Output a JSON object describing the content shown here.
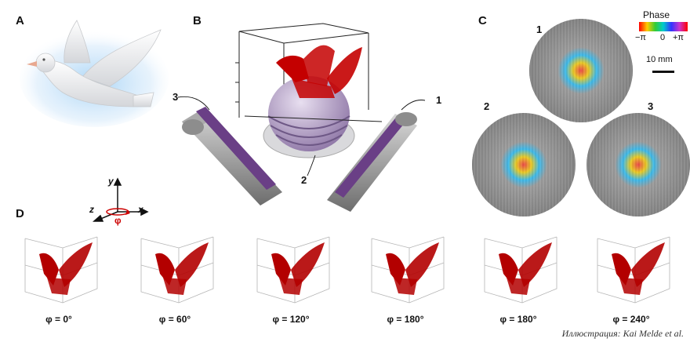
{
  "panels": {
    "a": {
      "letter": "A",
      "icon": "dove-model-icon"
    },
    "b": {
      "letter": "B",
      "callouts": [
        "3",
        "2",
        "1"
      ]
    },
    "c": {
      "letter": "C",
      "holograms": [
        "1",
        "2",
        "3"
      ],
      "colorbar": {
        "title": "Phase",
        "min_label": "−π",
        "mid_label": "0",
        "max_label": "+π",
        "colors": [
          "#ff0000",
          "#ffcc00",
          "#33cc33",
          "#00cccc",
          "#3333ff",
          "#cc33cc",
          "#ff0000"
        ]
      },
      "scale_bar": "10 mm"
    },
    "d": {
      "letter": "D",
      "axes": {
        "y": "y",
        "x": "x",
        "z": "z",
        "rotation": "φ"
      },
      "rotations": [
        "φ = 0°",
        "φ = 60°",
        "φ = 120°",
        "φ = 180°",
        "φ = 180°",
        "φ = 240°"
      ]
    }
  },
  "credit": "Иллюстрация: Kai Melde et al.",
  "colors": {
    "particles": "#b30000",
    "dish": "#8a8a8a",
    "pattern": "#6a3f86"
  }
}
